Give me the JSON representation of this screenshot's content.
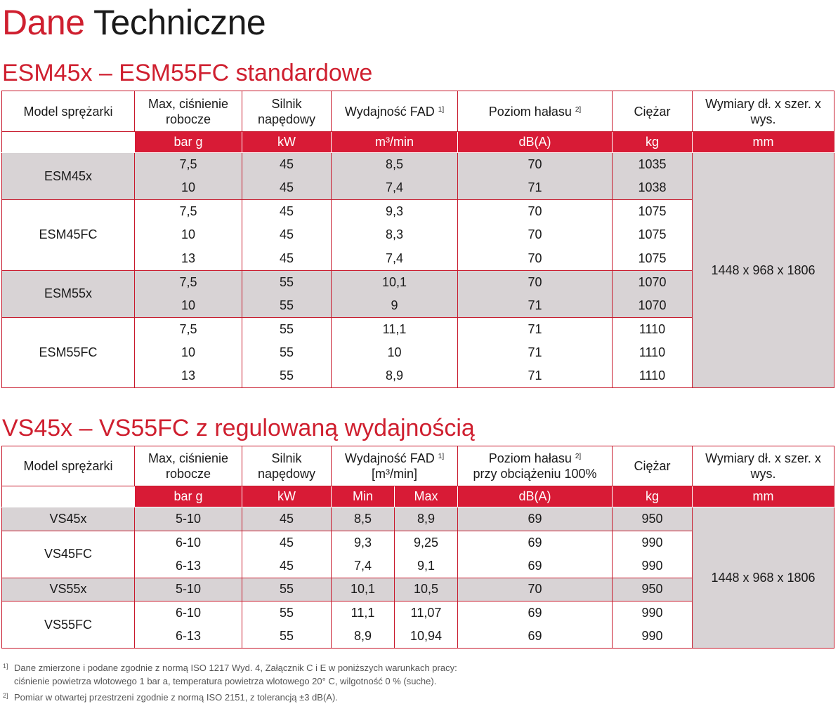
{
  "page": {
    "title_part1": "Dane",
    "title_part2": "Techniczne"
  },
  "colors": {
    "accent": "#cf1f2f",
    "shade": "#d8d3d5",
    "header_bar": "#d81b36"
  },
  "table1": {
    "title": "ESM45x – ESM55FC standardowe",
    "headers": {
      "model": "Model sprężarki",
      "pressure": "Max, ciśnienie robocze",
      "motor": "Silnik napędowy",
      "fad": "Wydajność FAD",
      "fad_sup": "1]",
      "noise": "Poziom hałasu",
      "noise_sup": "2]",
      "weight": "Ciężar",
      "dims": "Wymiary dł. x szer. x wys."
    },
    "units": {
      "pressure": "bar g",
      "motor": "kW",
      "fad": "m³/min",
      "noise": "dB(A)",
      "weight": "kg",
      "dims": "mm"
    },
    "dims_value": "1448 x 968 x 1806",
    "groups": [
      {
        "model": "ESM45x",
        "shade": true,
        "rows": [
          {
            "pressure": "7,5",
            "motor": "45",
            "fad": "8,5",
            "noise": "70",
            "weight": "1035"
          },
          {
            "pressure": "10",
            "motor": "45",
            "fad": "7,4",
            "noise": "71",
            "weight": "1038"
          }
        ]
      },
      {
        "model": "ESM45FC",
        "shade": false,
        "rows": [
          {
            "pressure": "7,5",
            "motor": "45",
            "fad": "9,3",
            "noise": "70",
            "weight": "1075"
          },
          {
            "pressure": "10",
            "motor": "45",
            "fad": "8,3",
            "noise": "70",
            "weight": "1075"
          },
          {
            "pressure": "13",
            "motor": "45",
            "fad": "7,4",
            "noise": "70",
            "weight": "1075"
          }
        ]
      },
      {
        "model": "ESM55x",
        "shade": true,
        "rows": [
          {
            "pressure": "7,5",
            "motor": "55",
            "fad": "10,1",
            "noise": "70",
            "weight": "1070"
          },
          {
            "pressure": "10",
            "motor": "55",
            "fad": "9",
            "noise": "71",
            "weight": "1070"
          }
        ]
      },
      {
        "model": "ESM55FC",
        "shade": false,
        "rows": [
          {
            "pressure": "7,5",
            "motor": "55",
            "fad": "11,1",
            "noise": "71",
            "weight": "1110"
          },
          {
            "pressure": "10",
            "motor": "55",
            "fad": "10",
            "noise": "71",
            "weight": "1110"
          },
          {
            "pressure": "13",
            "motor": "55",
            "fad": "8,9",
            "noise": "71",
            "weight": "1110"
          }
        ]
      }
    ]
  },
  "table2": {
    "title": "VS45x – VS55FC z regulowaną wydajnością",
    "headers": {
      "model": "Model sprężarki",
      "pressure": "Max, ciśnienie robocze",
      "motor": "Silnik napędowy",
      "fad": "Wydajność FAD",
      "fad_sup": "1]",
      "fad_unit": "[m³/min]",
      "noise": "Poziom hałasu",
      "noise_sup": "2]",
      "noise_line2": "przy obciążeniu 100%",
      "weight": "Ciężar",
      "dims": "Wymiary dł. x szer. x wys."
    },
    "units": {
      "pressure": "bar g",
      "motor": "kW",
      "min": "Min",
      "max": "Max",
      "noise": "dB(A)",
      "weight": "kg",
      "dims": "mm"
    },
    "dims_value": "1448 x 968 x 1806",
    "groups": [
      {
        "model": "VS45x",
        "shade": true,
        "rows": [
          {
            "pressure": "5-10",
            "motor": "45",
            "min": "8,5",
            "max": "8,9",
            "noise": "69",
            "weight": "950"
          }
        ]
      },
      {
        "model": "VS45FC",
        "shade": false,
        "rows": [
          {
            "pressure": "6-10",
            "motor": "45",
            "min": "9,3",
            "max": "9,25",
            "noise": "69",
            "weight": "990"
          },
          {
            "pressure": "6-13",
            "motor": "45",
            "min": "7,4",
            "max": "9,1",
            "noise": "69",
            "weight": "990"
          }
        ]
      },
      {
        "model": "VS55x",
        "shade": true,
        "rows": [
          {
            "pressure": "5-10",
            "motor": "55",
            "min": "10,1",
            "max": "10,5",
            "noise": "70",
            "weight": "950"
          }
        ]
      },
      {
        "model": "VS55FC",
        "shade": false,
        "rows": [
          {
            "pressure": "6-10",
            "motor": "55",
            "min": "11,1",
            "max": "11,07",
            "noise": "69",
            "weight": "990"
          },
          {
            "pressure": "6-13",
            "motor": "55",
            "min": "8,9",
            "max": "10,94",
            "noise": "69",
            "weight": "990"
          }
        ]
      }
    ]
  },
  "footnotes": [
    {
      "mark": "1]",
      "lines": [
        "Dane zmierzone i podane zgodnie z normą ISO 1217 Wyd. 4, Załącznik C i E w poniższych warunkach pracy:",
        "ciśnienie powietrza wlotowego 1 bar a, temperatura powietrza wlotowego 20° C, wilgotność 0 % (suche)."
      ]
    },
    {
      "mark": "2]",
      "lines": [
        "Pomiar w otwartej przestrzeni zgodnie z normą ISO 2151, z tolerancją ±3 dB(A)."
      ]
    }
  ]
}
